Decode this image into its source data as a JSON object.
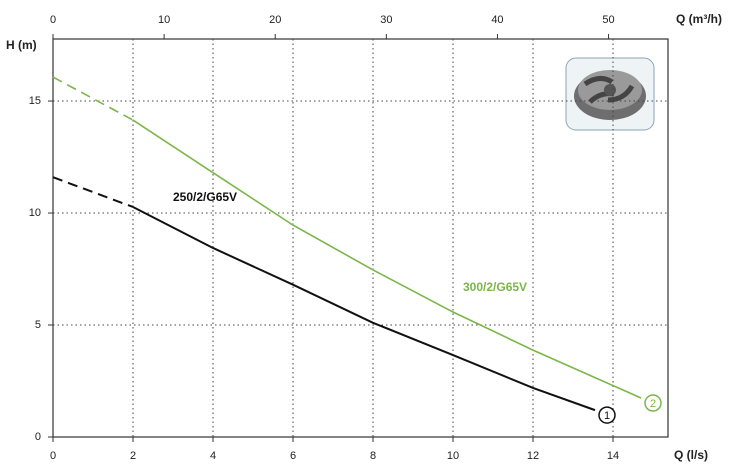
{
  "chart_data": {
    "type": "line",
    "y_label": "H (m)",
    "x_label": "Q (l/s)",
    "x2_label": "Q (m³/h)",
    "xlim": [
      0,
      15.375
    ],
    "xticks": [
      0,
      2,
      4,
      6,
      8,
      10,
      12,
      14
    ],
    "x2lim": [
      0,
      55.35
    ],
    "x2ticks": [
      0,
      10,
      20,
      30,
      40,
      50
    ],
    "ylim": [
      0,
      17.77
    ],
    "yticks": [
      0,
      5,
      10,
      15
    ],
    "grid": true,
    "series": [
      {
        "name": "250/2/G65V",
        "color": "#111111",
        "marker": "1",
        "dash_points": 2,
        "x": [
          0,
          2,
          4,
          6,
          8,
          10,
          12,
          13.55
        ],
        "values": [
          11.6,
          10.27,
          8.44,
          6.8,
          5.1,
          3.66,
          2.19,
          1.2
        ]
      },
      {
        "name": "300/2/G65V",
        "color": "#7ab648",
        "marker": "2",
        "dash_points": 2,
        "x": [
          0,
          2,
          4,
          6,
          8,
          10,
          12,
          14.7
        ],
        "values": [
          16.07,
          14.15,
          11.8,
          9.46,
          7.46,
          5.58,
          3.88,
          1.74
        ]
      }
    ]
  }
}
